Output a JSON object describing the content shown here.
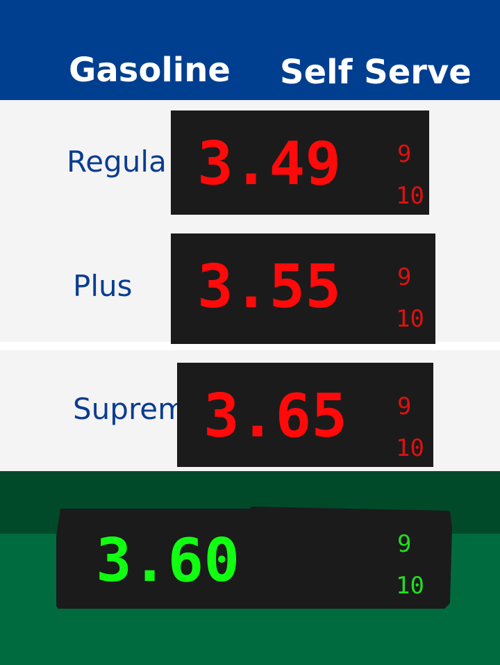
{
  "header": {
    "left_title": "Gasoline",
    "right_title": "Self Serve",
    "background": "#003f8f"
  },
  "grades": [
    {
      "label": "Regula",
      "price": "3.49",
      "frac_num": "9",
      "frac_den": "10"
    },
    {
      "label": "Plus",
      "price": "3.55",
      "frac_num": "9",
      "frac_den": "10"
    },
    {
      "label": "Suprem",
      "price": "3.65",
      "frac_num": "9",
      "frac_den": "10"
    }
  ],
  "diesel": {
    "price": "3.60",
    "frac_num": "9",
    "frac_den": "10"
  },
  "colors": {
    "price_red": "#ff0a0a",
    "fraction_red": "#dd1111",
    "price_green": "#11ff11",
    "fraction_green": "#22dd22",
    "display_bg": "#1b1b1b",
    "label_blue": "#0a3d8f",
    "green_dark": "#004a2a",
    "green_light": "#006b3f"
  }
}
